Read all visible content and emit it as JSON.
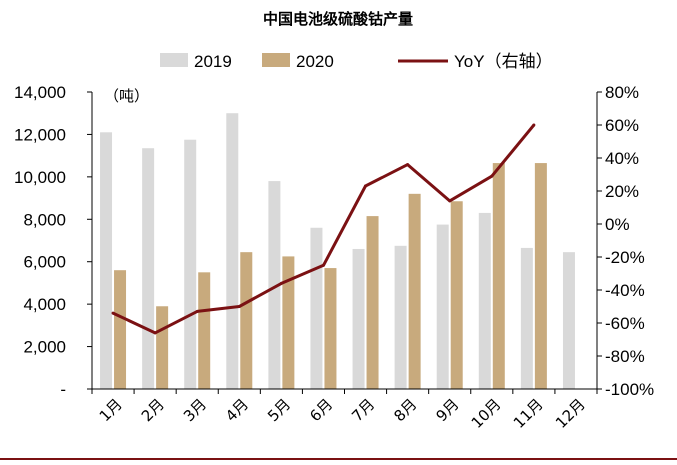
{
  "chart_data": {
    "type": "bar",
    "title": "中国电池级硫酸钴产量",
    "unit_label": "（吨）",
    "categories": [
      "1月",
      "2月",
      "3月",
      "4月",
      "5月",
      "6月",
      "7月",
      "8月",
      "9月",
      "10月",
      "11月",
      "12月"
    ],
    "series": [
      {
        "name": "2019",
        "kind": "bar",
        "axis": "left",
        "color": "#d9d9d9",
        "values": [
          12100,
          11350,
          11750,
          13000,
          9800,
          7600,
          6600,
          6750,
          7750,
          8300,
          6650,
          6450
        ]
      },
      {
        "name": "2020",
        "kind": "bar",
        "axis": "left",
        "color": "#c8aa7d",
        "values": [
          5600,
          3900,
          5500,
          6450,
          6250,
          5700,
          8150,
          9200,
          8850,
          10650,
          10650,
          null
        ]
      },
      {
        "name": "YoY（右轴）",
        "kind": "line",
        "axis": "right",
        "color": "#7b1113",
        "values": [
          -54,
          -66,
          -53,
          -50,
          -36,
          -25,
          23,
          36,
          14,
          29,
          60,
          null
        ]
      }
    ],
    "left_axis": {
      "min": 0,
      "max": 14000,
      "ticks": [
        0,
        2000,
        4000,
        6000,
        8000,
        10000,
        12000,
        14000
      ],
      "tick_labels": [
        "-",
        "2,000",
        "4,000",
        "6,000",
        "8,000",
        "10,000",
        "12,000",
        "14,000"
      ]
    },
    "right_axis": {
      "min": -100,
      "max": 80,
      "ticks": [
        -100,
        -80,
        -60,
        -40,
        -20,
        0,
        20,
        40,
        60,
        80
      ],
      "tick_labels": [
        "-100%",
        "-80%",
        "-60%",
        "-40%",
        "-20%",
        "0%",
        "20%",
        "40%",
        "60%",
        "80%"
      ]
    },
    "legend_position": "top",
    "grid": false
  }
}
